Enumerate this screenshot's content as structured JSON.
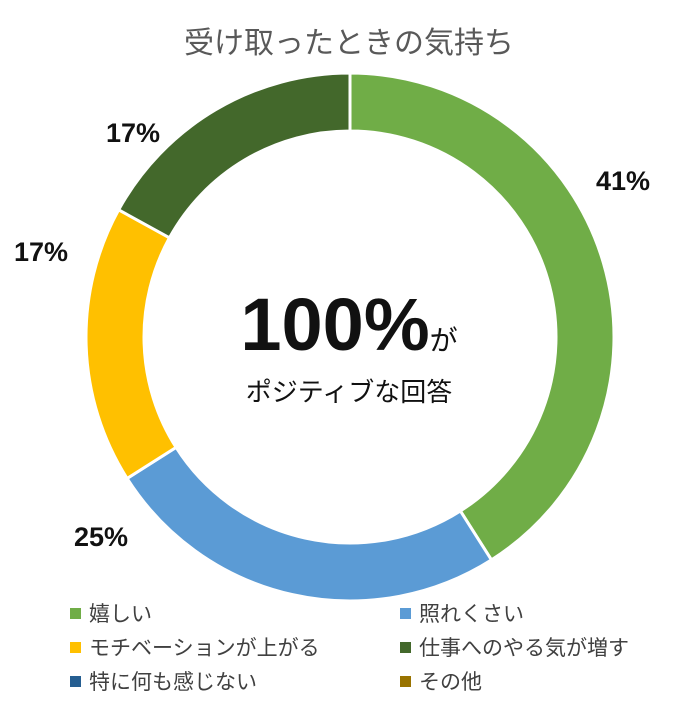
{
  "chart_data": {
    "type": "donut",
    "title": "受け取ったときの気持ち",
    "center": {
      "big": "100%",
      "small": "が",
      "sub": "ポジティブな回答"
    },
    "slices": [
      {
        "label": "嬉しい",
        "value": 41,
        "display": "41%",
        "color": "#70AD47"
      },
      {
        "label": "照れくさい",
        "value": 25,
        "display": "25%",
        "color": "#5B9BD5"
      },
      {
        "label": "モチベーションが上がる",
        "value": 17,
        "display": "17%",
        "color": "#FFC000"
      },
      {
        "label": "仕事へのやる気が増す",
        "value": 17,
        "display": "17%",
        "color": "#43682B"
      },
      {
        "label": "特に何も感じない",
        "value": 0,
        "display": "",
        "color": "#255E91"
      },
      {
        "label": "その他",
        "value": 0,
        "display": "",
        "color": "#997300"
      }
    ],
    "legend_placement": "bottom"
  }
}
